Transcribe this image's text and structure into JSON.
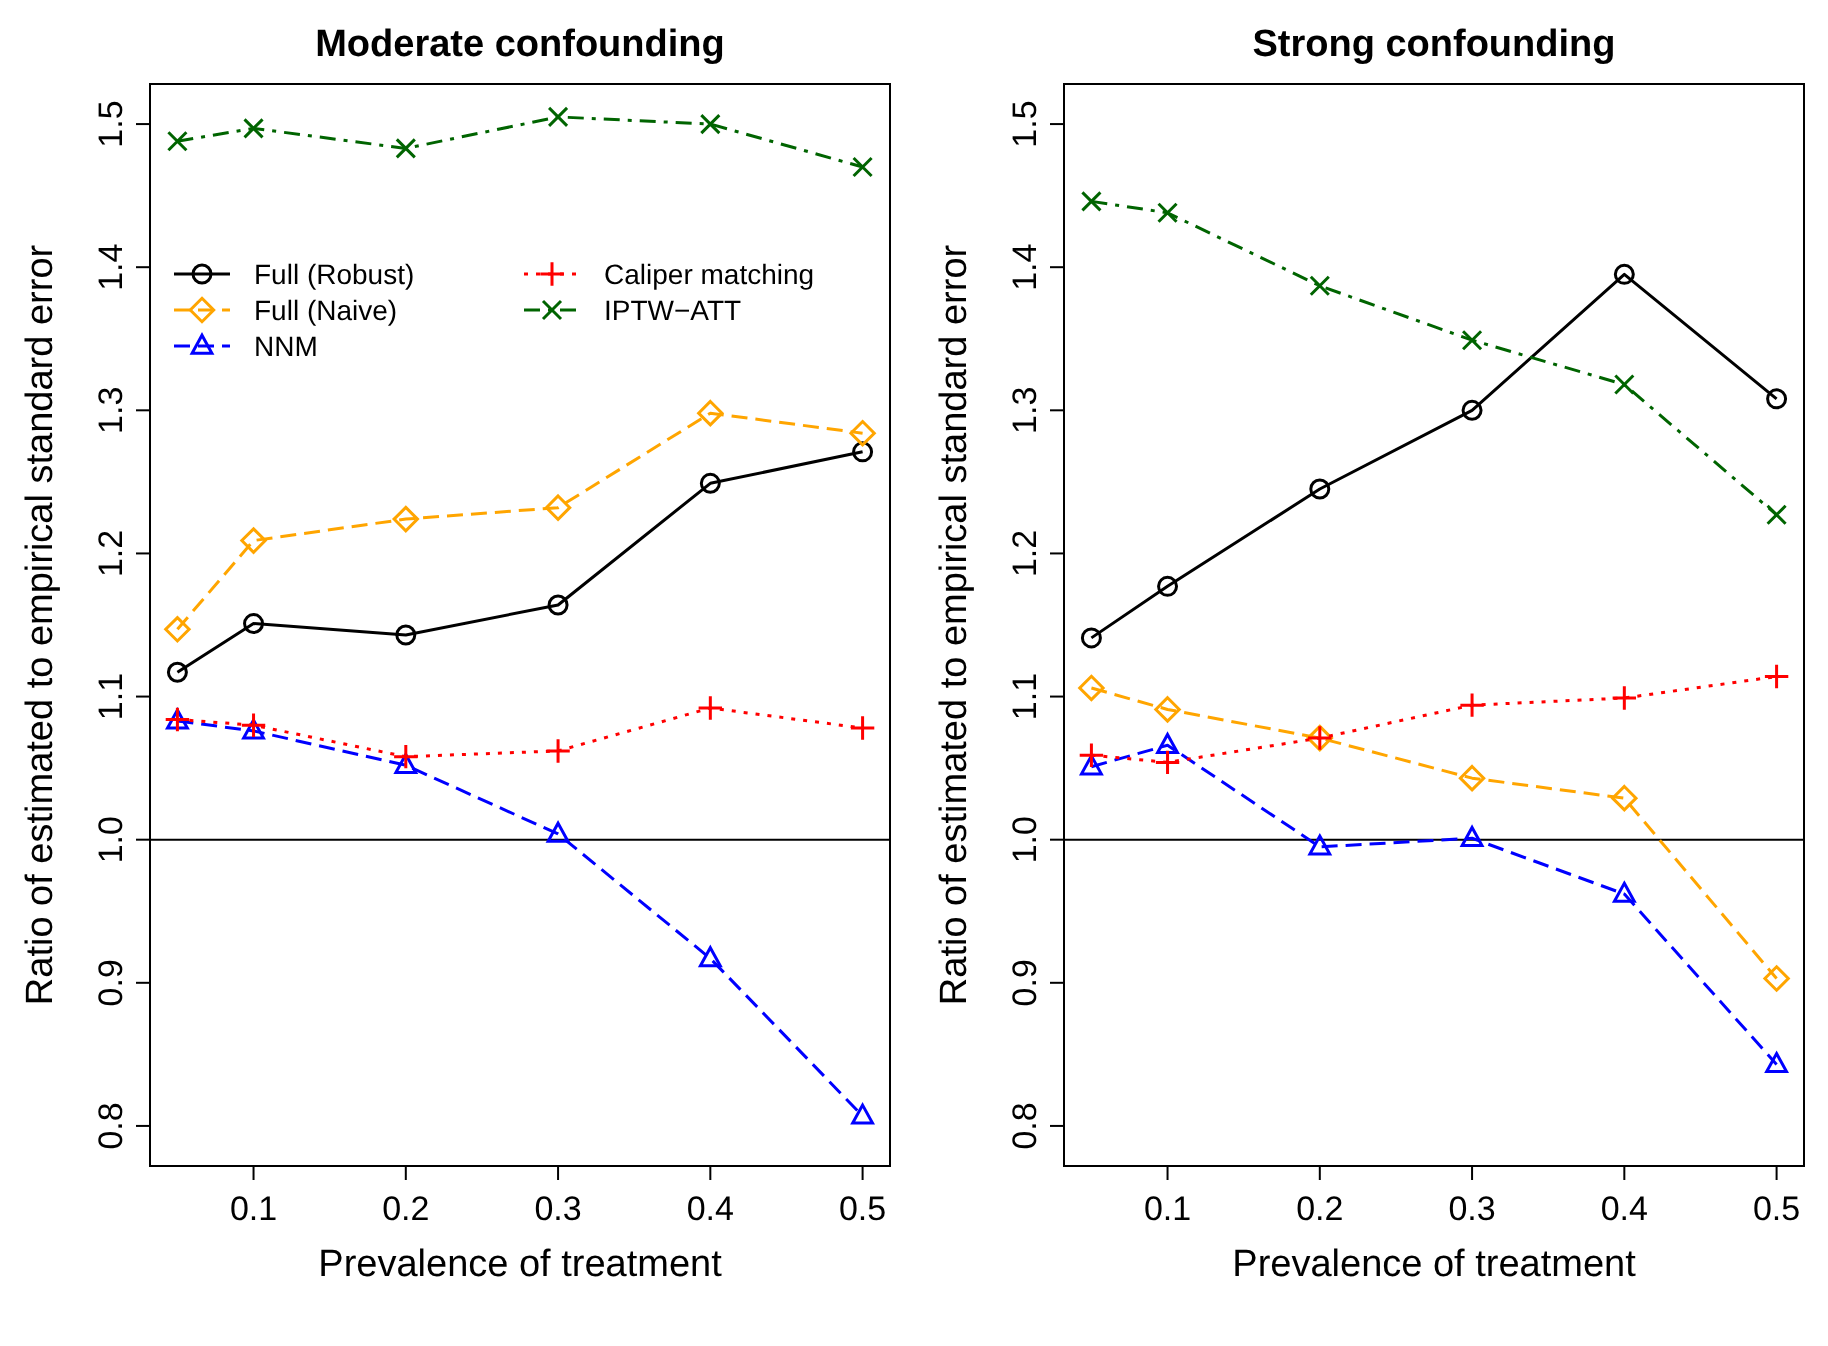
{
  "chart_data": [
    {
      "type": "line",
      "title": "Moderate confounding",
      "xlabel": "Prevalence of treatment",
      "ylabel": "Ratio of estimated to empirical standard error",
      "x": [
        0.05,
        0.1,
        0.2,
        0.3,
        0.4,
        0.5
      ],
      "xlim": [
        0.032,
        0.518
      ],
      "xticks": [
        0.1,
        0.2,
        0.3,
        0.4,
        0.5
      ],
      "ylim": [
        0.772,
        1.528
      ],
      "yticks": [
        0.8,
        0.9,
        {
          "value": 1,
          "label": "1.0"
        },
        1.1,
        1.2,
        1.3,
        1.4,
        1.5
      ],
      "grid": false,
      "legend": "top left",
      "ref_lines": [
        {
          "axis": "y",
          "value": 1.0,
          "color": "#000000",
          "line_style": "solid"
        }
      ],
      "series": [
        {
          "name": "Full (Robust)",
          "color": "#000000",
          "marker": "circle",
          "line_style": "solid",
          "values": [
            1.117,
            1.151,
            1.143,
            1.164,
            1.249,
            1.271
          ]
        },
        {
          "name": "Full (Naive)",
          "color": "#ffa500",
          "marker": "diamond",
          "line_style": "dashed",
          "values": [
            1.147,
            1.209,
            1.224,
            1.232,
            1.298,
            1.284
          ]
        },
        {
          "name": "NNM",
          "color": "#0000ff",
          "marker": "triangle",
          "line_style": "dashed",
          "values": [
            1.083,
            1.076,
            1.052,
            1.004,
            0.917,
            0.807
          ]
        },
        {
          "name": "Caliper matching",
          "color": "#ff0000",
          "marker": "cross",
          "line_style": "dotted",
          "values": [
            1.084,
            1.08,
            1.058,
            1.062,
            1.092,
            1.078
          ]
        },
        {
          "name": "IPTW−ATT",
          "color": "#006400",
          "marker": "x",
          "line_style": "dashdot",
          "values": [
            1.488,
            1.497,
            1.483,
            1.505,
            1.5,
            1.47
          ]
        }
      ]
    },
    {
      "type": "line",
      "title": "Strong confounding",
      "xlabel": "Prevalence of treatment",
      "ylabel": "Ratio of estimated to empirical standard error",
      "x": [
        0.05,
        0.1,
        0.2,
        0.3,
        0.4,
        0.5
      ],
      "xlim": [
        0.032,
        0.518
      ],
      "xticks": [
        0.1,
        0.2,
        0.3,
        0.4,
        0.5
      ],
      "ylim": [
        0.772,
        1.528
      ],
      "yticks": [
        0.8,
        0.9,
        {
          "value": 1,
          "label": "1.0"
        },
        1.1,
        1.2,
        1.3,
        1.4,
        1.5
      ],
      "grid": false,
      "legend": false,
      "ref_lines": [
        {
          "axis": "y",
          "value": 1.0,
          "color": "#000000",
          "line_style": "solid"
        }
      ],
      "series": [
        {
          "color": "#000000",
          "marker": "circle",
          "line_style": "solid",
          "values": [
            1.141,
            1.177,
            1.245,
            1.3,
            1.395,
            1.308
          ]
        },
        {
          "color": "#ffa500",
          "marker": "diamond",
          "line_style": "dashed",
          "values": [
            1.106,
            1.091,
            1.071,
            1.043,
            1.029,
            0.903
          ]
        },
        {
          "color": "#0000ff",
          "marker": "triangle",
          "line_style": "dashed",
          "values": [
            1.051,
            1.066,
            0.995,
            1.001,
            0.962,
            0.843
          ]
        },
        {
          "color": "#ff0000",
          "marker": "cross",
          "line_style": "dotted",
          "values": [
            1.059,
            1.054,
            1.071,
            1.094,
            1.099,
            1.114
          ]
        },
        {
          "color": "#006400",
          "marker": "x",
          "line_style": "dashdot",
          "values": [
            1.446,
            1.438,
            1.387,
            1.349,
            1.318,
            1.227
          ]
        }
      ]
    }
  ]
}
